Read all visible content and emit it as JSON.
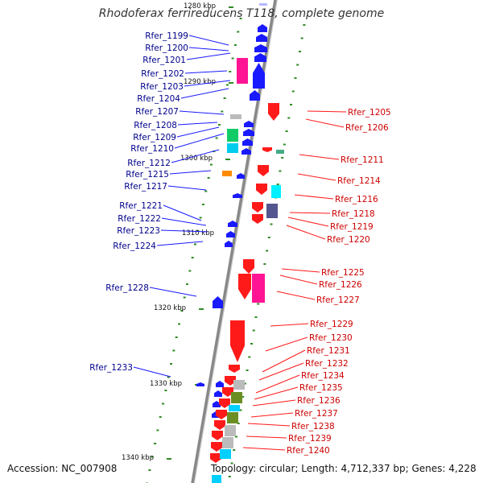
{
  "title": "Rhodoferax ferrireducens T118, complete genome",
  "accession": "Accession: NC_007908",
  "topology": "Topology: circular; Length: 4,712,337 bp; Genes: 4,228",
  "colors": {
    "forward": "#1a1aff",
    "reverse": "#ff1a1a",
    "label_forward": "#00008b",
    "label_reverse": "#cc0000",
    "backbone": "#888888",
    "tick": "#2e8b22"
  },
  "kbp_markers": [
    "1280 kbp",
    "1290 kbp",
    "1300 kbp",
    "1310 kbp",
    "1320 kbp",
    "1330 kbp",
    "1340 kbp"
  ],
  "forward_labels": [
    "Rfer_1199",
    "Rfer_1200",
    "Rfer_1201",
    "Rfer_1202",
    "Rfer_1203",
    "Rfer_1204",
    "Rfer_1207",
    "Rfer_1208",
    "Rfer_1209",
    "Rfer_1210",
    "Rfer_1212",
    "Rfer_1215",
    "Rfer_1217",
    "Rfer_1221",
    "Rfer_1222",
    "Rfer_1223",
    "Rfer_1224",
    "Rfer_1228",
    "Rfer_1233"
  ],
  "reverse_labels": [
    "Rfer_1205",
    "Rfer_1206",
    "Rfer_1211",
    "Rfer_1214",
    "Rfer_1216",
    "Rfer_1218",
    "Rfer_1219",
    "Rfer_1220",
    "Rfer_1225",
    "Rfer_1226",
    "Rfer_1227",
    "Rfer_1229",
    "Rfer_1230",
    "Rfer_1231",
    "Rfer_1232",
    "Rfer_1234",
    "Rfer_1235",
    "Rfer_1236",
    "Rfer_1237",
    "Rfer_1238",
    "Rfer_1239",
    "Rfer_1240"
  ]
}
